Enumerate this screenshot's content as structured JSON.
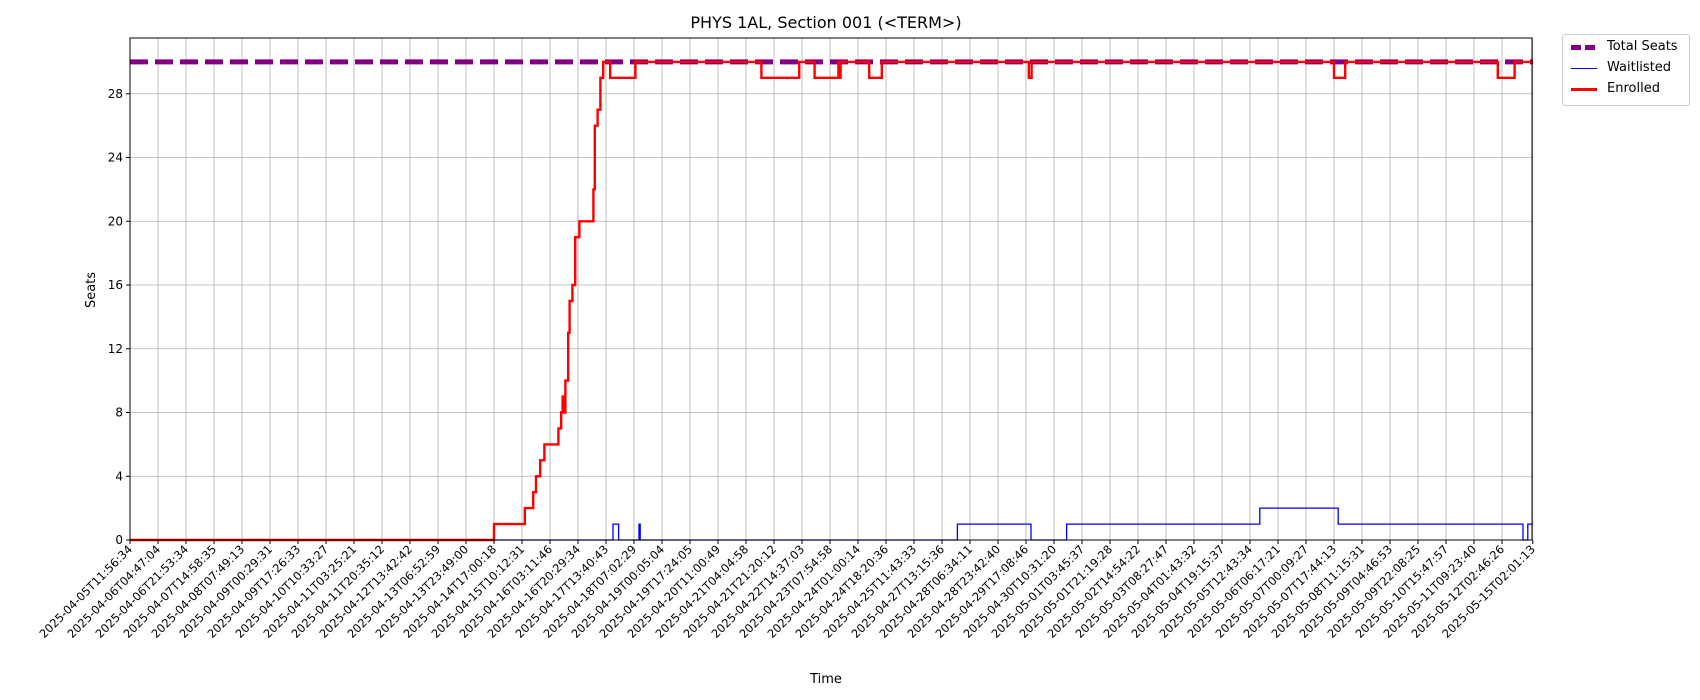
{
  "chart_data": {
    "type": "line",
    "title": "PHYS 1AL, Section 001 (<TERM>)",
    "xlabel": "Time",
    "ylabel": "Seats",
    "ylim": [
      0,
      31.5
    ],
    "yticks": [
      0,
      4,
      8,
      12,
      16,
      20,
      24,
      28
    ],
    "grid": true,
    "legend_position": "outside-top-right",
    "x_ticks": [
      "2025-04-05T11:56:34",
      "2025-04-06T04:47:04",
      "2025-04-06T21:53:34",
      "2025-04-07T14:58:35",
      "2025-04-08T07:49:13",
      "2025-04-09T00:29:31",
      "2025-04-09T17:26:33",
      "2025-04-10T10:33:27",
      "2025-04-11T03:25:21",
      "2025-04-11T20:35:12",
      "2025-04-12T13:42:42",
      "2025-04-13T06:52:59",
      "2025-04-13T23:49:00",
      "2025-04-14T17:00:18",
      "2025-04-15T10:12:31",
      "2025-04-16T03:11:46",
      "2025-04-16T20:29:34",
      "2025-04-17T13:40:43",
      "2025-04-18T07:02:29",
      "2025-04-19T00:05:04",
      "2025-04-19T17:24:05",
      "2025-04-20T11:00:49",
      "2025-04-21T04:04:58",
      "2025-04-21T21:20:12",
      "2025-04-22T14:37:03",
      "2025-04-23T07:54:58",
      "2025-04-24T01:00:14",
      "2025-04-24T18:20:36",
      "2025-04-25T11:43:33",
      "2025-04-27T13:15:36",
      "2025-04-28T06:34:11",
      "2025-04-28T23:42:40",
      "2025-04-29T17:08:46",
      "2025-04-30T10:31:20",
      "2025-05-01T03:45:37",
      "2025-05-01T21:19:28",
      "2025-05-02T14:54:22",
      "2025-05-03T08:27:47",
      "2025-05-04T01:43:32",
      "2025-05-04T19:15:37",
      "2025-05-05T12:43:34",
      "2025-05-06T06:17:21",
      "2025-05-07T00:09:27",
      "2025-05-07T17:44:13",
      "2025-05-08T11:15:31",
      "2025-05-09T04:46:53",
      "2025-05-09T22:08:25",
      "2025-05-10T15:47:57",
      "2025-05-11T09:23:40",
      "2025-05-12T02:46:26",
      "2025-05-15T02:01:13"
    ],
    "series": [
      {
        "name": "Total Seats",
        "color": "#800080",
        "style": "dashed",
        "points": [
          [
            0,
            30
          ],
          [
            50.1,
            30
          ]
        ]
      },
      {
        "name": "Waitlisted",
        "color": "#0000ff",
        "style": "solid",
        "points": [
          [
            0,
            0
          ],
          [
            17.25,
            0
          ],
          [
            17.25,
            1
          ],
          [
            17.45,
            1
          ],
          [
            17.45,
            0
          ],
          [
            18.18,
            0
          ],
          [
            18.18,
            1
          ],
          [
            18.22,
            1
          ],
          [
            18.22,
            0
          ],
          [
            29.55,
            0
          ],
          [
            29.55,
            1
          ],
          [
            32.18,
            1
          ],
          [
            32.18,
            0
          ],
          [
            33.45,
            0
          ],
          [
            33.45,
            1
          ],
          [
            40.35,
            1
          ],
          [
            40.35,
            2
          ],
          [
            43.15,
            2
          ],
          [
            43.15,
            1
          ],
          [
            49.75,
            1
          ],
          [
            49.75,
            0
          ],
          [
            49.92,
            0
          ],
          [
            49.92,
            1
          ],
          [
            50.1,
            1
          ]
        ]
      },
      {
        "name": "Enrolled",
        "color": "#ff0000",
        "style": "solid",
        "points": [
          [
            0,
            0
          ],
          [
            13,
            0
          ],
          [
            13,
            1
          ],
          [
            14.1,
            1
          ],
          [
            14.1,
            2
          ],
          [
            14.4,
            2
          ],
          [
            14.4,
            3
          ],
          [
            14.5,
            3
          ],
          [
            14.5,
            4
          ],
          [
            14.65,
            4
          ],
          [
            14.65,
            5
          ],
          [
            14.8,
            5
          ],
          [
            14.8,
            6
          ],
          [
            15.3,
            6
          ],
          [
            15.3,
            7
          ],
          [
            15.4,
            7
          ],
          [
            15.4,
            8
          ],
          [
            15.45,
            8
          ],
          [
            15.45,
            9
          ],
          [
            15.52,
            9
          ],
          [
            15.52,
            8
          ],
          [
            15.55,
            8
          ],
          [
            15.55,
            10
          ],
          [
            15.65,
            10
          ],
          [
            15.65,
            13
          ],
          [
            15.7,
            13
          ],
          [
            15.7,
            15
          ],
          [
            15.8,
            15
          ],
          [
            15.8,
            16
          ],
          [
            15.9,
            16
          ],
          [
            15.9,
            19
          ],
          [
            16.05,
            19
          ],
          [
            16.05,
            20
          ],
          [
            16.55,
            20
          ],
          [
            16.55,
            22
          ],
          [
            16.6,
            22
          ],
          [
            16.6,
            26
          ],
          [
            16.7,
            26
          ],
          [
            16.7,
            27
          ],
          [
            16.8,
            27
          ],
          [
            16.8,
            29
          ],
          [
            16.9,
            29
          ],
          [
            16.9,
            30
          ],
          [
            17.15,
            30
          ],
          [
            17.15,
            29
          ],
          [
            18.05,
            29
          ],
          [
            18.05,
            30
          ],
          [
            22.55,
            30
          ],
          [
            22.55,
            29
          ],
          [
            23.9,
            29
          ],
          [
            23.9,
            30
          ],
          [
            24.45,
            30
          ],
          [
            24.45,
            29
          ],
          [
            25.3,
            29
          ],
          [
            25.3,
            30
          ],
          [
            25.32,
            30
          ],
          [
            25.32,
            29
          ],
          [
            25.38,
            29
          ],
          [
            25.38,
            30
          ],
          [
            26.4,
            30
          ],
          [
            26.4,
            29
          ],
          [
            26.85,
            29
          ],
          [
            26.85,
            30
          ],
          [
            32.1,
            30
          ],
          [
            32.1,
            29
          ],
          [
            32.2,
            29
          ],
          [
            32.2,
            30
          ],
          [
            43.0,
            30
          ],
          [
            43.0,
            29
          ],
          [
            43.4,
            29
          ],
          [
            43.4,
            30
          ],
          [
            48.85,
            30
          ],
          [
            48.85,
            29
          ],
          [
            49.45,
            29
          ],
          [
            49.45,
            30
          ],
          [
            50.1,
            30
          ]
        ]
      }
    ]
  }
}
